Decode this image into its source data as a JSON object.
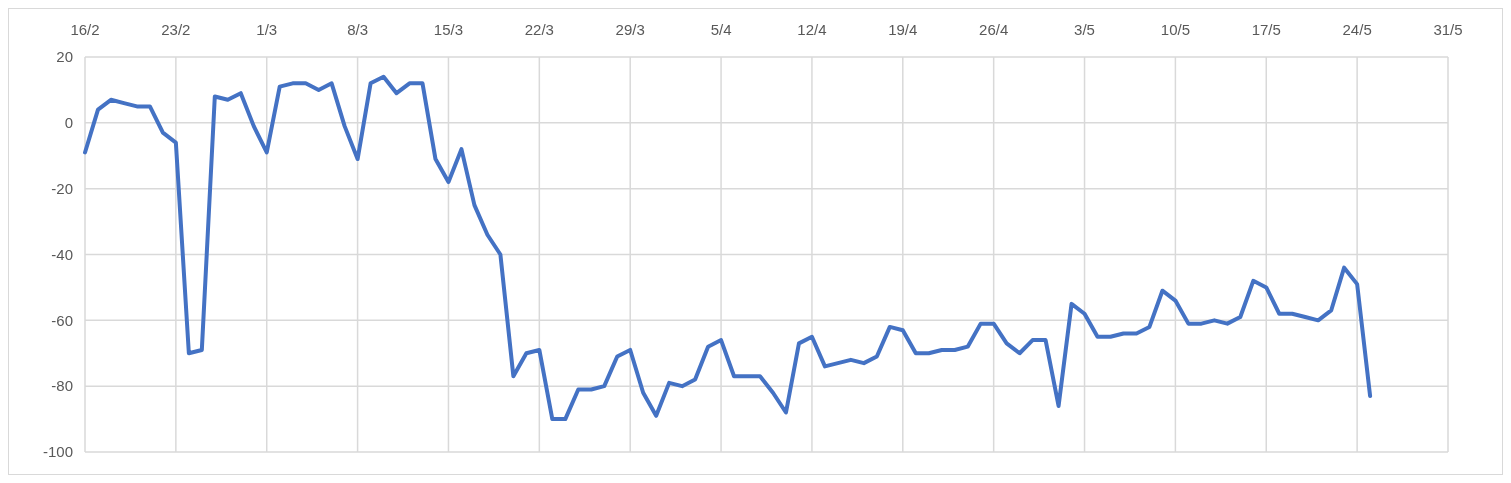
{
  "chart_data": {
    "type": "line",
    "grid": true,
    "xlim": [
      "--02-16",
      "--05-31"
    ],
    "xticks": [
      {
        "value": "--02-16",
        "label": "16/2"
      },
      {
        "value": "--02-23",
        "label": "23/2"
      },
      {
        "value": "--03-01",
        "label": "1/3"
      },
      {
        "value": "--03-08",
        "label": "8/3"
      },
      {
        "value": "--03-15",
        "label": "15/3"
      },
      {
        "value": "--03-22",
        "label": "22/3"
      },
      {
        "value": "--03-29",
        "label": "29/3"
      },
      {
        "value": "--04-05",
        "label": "5/4"
      },
      {
        "value": "--04-12",
        "label": "12/4"
      },
      {
        "value": "--04-19",
        "label": "19/4"
      },
      {
        "value": "--04-26",
        "label": "26/4"
      },
      {
        "value": "--05-03",
        "label": "3/5"
      },
      {
        "value": "--05-10",
        "label": "10/5"
      },
      {
        "value": "--05-17",
        "label": "17/5"
      },
      {
        "value": "--05-24",
        "label": "24/5"
      },
      {
        "value": "--05-31",
        "label": "31/5"
      }
    ],
    "ylim": [
      -100,
      20
    ],
    "yticks": [
      -100,
      -80,
      -60,
      -40,
      -20,
      0,
      20
    ],
    "x": [
      "--02-16",
      "--02-17",
      "--02-18",
      "--02-19",
      "--02-20",
      "--02-21",
      "--02-22",
      "--02-23",
      "--02-24",
      "--02-25",
      "--02-26",
      "--02-27",
      "--02-28",
      "--02-29",
      "--03-01",
      "--03-02",
      "--03-03",
      "--03-04",
      "--03-05",
      "--03-06",
      "--03-07",
      "--03-08",
      "--03-09",
      "--03-10",
      "--03-11",
      "--03-12",
      "--03-13",
      "--03-14",
      "--03-15",
      "--03-16",
      "--03-17",
      "--03-18",
      "--03-19",
      "--03-20",
      "--03-21",
      "--03-22",
      "--03-23",
      "--03-24",
      "--03-25",
      "--03-26",
      "--03-27",
      "--03-28",
      "--03-29",
      "--03-30",
      "--03-31",
      "--04-01",
      "--04-02",
      "--04-03",
      "--04-04",
      "--04-05",
      "--04-06",
      "--04-07",
      "--04-08",
      "--04-09",
      "--04-10",
      "--04-11",
      "--04-12",
      "--04-13",
      "--04-14",
      "--04-15",
      "--04-16",
      "--04-17",
      "--04-18",
      "--04-19",
      "--04-20",
      "--04-21",
      "--04-22",
      "--04-23",
      "--04-24",
      "--04-25",
      "--04-26",
      "--04-27",
      "--04-28",
      "--04-29",
      "--04-30",
      "--05-01",
      "--05-02",
      "--05-03",
      "--05-04",
      "--05-05",
      "--05-06",
      "--05-07",
      "--05-08",
      "--05-09",
      "--05-10",
      "--05-11",
      "--05-12",
      "--05-13",
      "--05-14",
      "--05-15",
      "--05-16",
      "--05-17",
      "--05-18",
      "--05-19",
      "--05-20",
      "--05-21",
      "--05-22",
      "--05-23",
      "--05-24",
      "--05-25"
    ],
    "series": [
      {
        "color": "#4472c4",
        "values": [
          -9,
          4,
          7,
          6,
          5,
          5,
          -3,
          -6,
          -70,
          -69,
          8,
          7,
          9,
          -1,
          -9,
          11,
          12,
          12,
          10,
          12,
          -1,
          -11,
          12,
          14,
          9,
          12,
          12,
          -11,
          -18,
          -8,
          -25,
          -34,
          -40,
          -77,
          -70,
          -69,
          -90,
          -90,
          -81,
          -81,
          -80,
          -71,
          -69,
          -82,
          -89,
          -79,
          -80,
          -78,
          -68,
          -66,
          -77,
          -77,
          -77,
          -82,
          -88,
          -67,
          -65,
          -74,
          -73,
          -72,
          -73,
          -71,
          -62,
          -63,
          -70,
          -70,
          -69,
          -69,
          -68,
          -61,
          -61,
          -67,
          -70,
          -66,
          -66,
          -86,
          -55,
          -58,
          -65,
          -65,
          -64,
          -64,
          -62,
          -51,
          -54,
          -61,
          -61,
          -60,
          -61,
          -59,
          -48,
          -50,
          -58,
          -58,
          -59,
          -60,
          -57,
          -44,
          -49,
          -83
        ]
      }
    ]
  }
}
